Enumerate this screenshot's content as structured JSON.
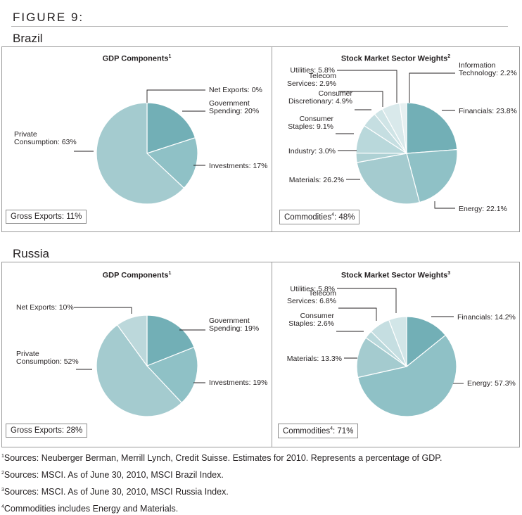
{
  "figure_title": "FIGURE 9:",
  "sections": [
    {
      "country": "Brazil",
      "gdp": {
        "title": "GDP Components",
        "sup": "1",
        "box_label": "Gross Exports: 11%"
      },
      "stock": {
        "title": "Stock Market Sector Weights",
        "sup": "2",
        "box_label": "Commodities",
        "box_sup": "4",
        "box_value": ": 48%"
      }
    },
    {
      "country": "Russia",
      "gdp": {
        "title": "GDP Components",
        "sup": "1",
        "box_label": "Gross Exports: 28%"
      },
      "stock": {
        "title": "Stock Market Sector Weights",
        "sup": "3",
        "box_label": "Commodities",
        "box_sup": "4",
        "box_value": ": 71%"
      }
    }
  ],
  "chart_data": [
    {
      "type": "pie",
      "title": "GDP Components",
      "categories": [
        "Net Exports",
        "Government Spending",
        "Investments",
        "Private Consumption"
      ],
      "values": [
        0,
        20,
        17,
        63
      ],
      "labels": [
        [
          "Net Exports: 0%"
        ],
        [
          "Government",
          "Spending: 20%"
        ],
        [
          "Investments: 17%"
        ],
        [
          "Private",
          "Consumption: 63%"
        ]
      ],
      "colors": [
        "#72afb6",
        "#72afb6",
        "#8fc1c6",
        "#a4cbcf"
      ]
    },
    {
      "type": "pie",
      "title": "Stock Market Sector Weights",
      "categories": [
        "Financials",
        "Energy",
        "Materials",
        "Industry",
        "Consumer Staples",
        "Consumer Discretionary",
        "Telecom Services",
        "Utilities",
        "Information Technology"
      ],
      "values": [
        23.8,
        22.1,
        26.2,
        3.0,
        9.1,
        4.9,
        2.9,
        5.8,
        2.2
      ],
      "labels": [
        [
          "Financials: 23.8%"
        ],
        [
          "Energy: 22.1%"
        ],
        [
          "Materials: 26.2%"
        ],
        [
          "Industry: 3.0%"
        ],
        [
          "Consumer",
          "Staples: 9.1%"
        ],
        [
          "Consumer",
          "Discretionary: 4.9%"
        ],
        [
          "Telecom",
          "Services: 2.9%"
        ],
        [
          "Utilities: 5.8%"
        ],
        [
          "Information",
          "Technology: 2.2%"
        ]
      ],
      "colors": [
        "#72afb6",
        "#8fc1c6",
        "#a4cbcf",
        "#aed1d4",
        "#b9d8db",
        "#c5dee1",
        "#cfe4e6",
        "#d9e9eb",
        "#e6f0f1"
      ]
    },
    {
      "type": "pie",
      "title": "GDP Components",
      "categories": [
        "Government Spending",
        "Investments",
        "Private Consumption",
        "Net Exports"
      ],
      "values": [
        19,
        19,
        52,
        10
      ],
      "labels": [
        [
          "Government",
          "Spending: 19%"
        ],
        [
          "Investments: 19%"
        ],
        [
          "Private",
          "Consumption: 52%"
        ],
        [
          "Net Exports: 10%"
        ]
      ],
      "colors": [
        "#72afb6",
        "#8fc1c6",
        "#a4cbcf",
        "#bcd8db"
      ]
    },
    {
      "type": "pie",
      "title": "Stock Market Sector Weights",
      "categories": [
        "Financials",
        "Energy",
        "Materials",
        "Consumer Staples",
        "Telecom Services",
        "Utilities"
      ],
      "values": [
        14.2,
        57.3,
        13.3,
        2.6,
        6.8,
        5.8
      ],
      "labels": [
        [
          "Financials: 14.2%"
        ],
        [
          "Energy: 57.3%"
        ],
        [
          "Materials: 13.3%"
        ],
        [
          "Consumer",
          "Staples: 2.6%"
        ],
        [
          "Telecom",
          "Services: 6.8%"
        ],
        [
          "Utilities: 5.8%"
        ]
      ],
      "colors": [
        "#72afb6",
        "#8fc1c6",
        "#a4cbcf",
        "#b9d8db",
        "#c5dee1",
        "#d2e6e8"
      ]
    }
  ],
  "footnotes": [
    {
      "sup": "1",
      "text": "Sources: Neuberger Berman, Merrill Lynch, Credit Suisse. Estimates for 2010. Represents a percentage of GDP."
    },
    {
      "sup": "2",
      "text": "Sources: MSCI. As of June 30, 2010, MSCI Brazil Index."
    },
    {
      "sup": "3",
      "text": "Sources: MSCI. As of June 30, 2010, MSCI Russia Index."
    },
    {
      "sup": "4",
      "text": "Commodities includes Energy and Materials."
    }
  ]
}
